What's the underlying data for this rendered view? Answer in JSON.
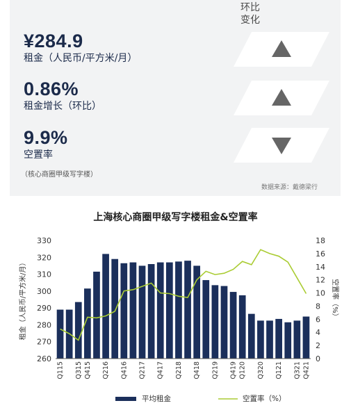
{
  "summary": {
    "change_header": [
      "环比",
      "变化"
    ],
    "metrics": [
      {
        "value": "¥284.9",
        "label": "租金（人民币/平方米/月）",
        "direction": "up"
      },
      {
        "value": "0.86%",
        "label": "租金增长（环比）",
        "direction": "up"
      },
      {
        "value": "9.9%",
        "label": "空置率",
        "direction": "down"
      }
    ],
    "note": "（核心商圈甲级写字楼）",
    "source": "数据来源：戴德梁行"
  },
  "colors": {
    "bar": "#1b2f5b",
    "line": "#aacc33",
    "arrow": "#666666",
    "panel": "#f2f3f4"
  },
  "chart_data": {
    "type": "bar",
    "title": "上海核心商圈甲级写字楼租金&空置率",
    "ylabel": "租金（人民币/平方米/月）",
    "y2label": "空置率（%）",
    "ylim": [
      260,
      330
    ],
    "y2lim": [
      0,
      18
    ],
    "yticks": [
      260,
      270,
      280,
      290,
      300,
      310,
      320,
      330
    ],
    "y2ticks": [
      0,
      2,
      4,
      6,
      8,
      10,
      12,
      14,
      16,
      18
    ],
    "tick_labels": [
      "Q115",
      "Q315",
      "Q415",
      "Q216",
      "Q416",
      "Q217",
      "Q417",
      "Q218",
      "Q418",
      "Q219",
      "Q419",
      "Q120",
      "Q320",
      "Q121",
      "Q321",
      "Q421"
    ],
    "categories": [
      "Q115",
      "Q215",
      "Q315",
      "Q415",
      "Q116",
      "Q216",
      "Q316",
      "Q416",
      "Q117",
      "Q217",
      "Q317",
      "Q417",
      "Q118",
      "Q218",
      "Q318",
      "Q418",
      "Q119",
      "Q219",
      "Q319",
      "Q419",
      "Q120",
      "Q220",
      "Q320",
      "Q420",
      "Q121",
      "Q221",
      "Q321",
      "Q421"
    ],
    "series": [
      {
        "name": "平均租金",
        "type": "bar",
        "axis": "left",
        "values": [
          289,
          289,
          293.5,
          301.5,
          311.5,
          322,
          319,
          316.5,
          317,
          315,
          316,
          317,
          317,
          317.5,
          318,
          315,
          306.5,
          303.5,
          303,
          299.5,
          297.5,
          286.5,
          282.5,
          282.5,
          283.5,
          281.5,
          282.5,
          284.9
        ]
      },
      {
        "name": "空置率（%）",
        "type": "line",
        "axis": "right",
        "values": [
          4.5,
          3.8,
          2.8,
          6.3,
          6.2,
          6.5,
          7.2,
          10.3,
          10.5,
          11.0,
          11.5,
          10.0,
          9.9,
          9.5,
          9.3,
          12.0,
          13.3,
          12.8,
          13.0,
          13.6,
          14.8,
          14.3,
          16.6,
          16.0,
          15.6,
          14.7,
          12.3,
          9.9
        ]
      }
    ],
    "grid": false,
    "legend_position": "bottom"
  }
}
